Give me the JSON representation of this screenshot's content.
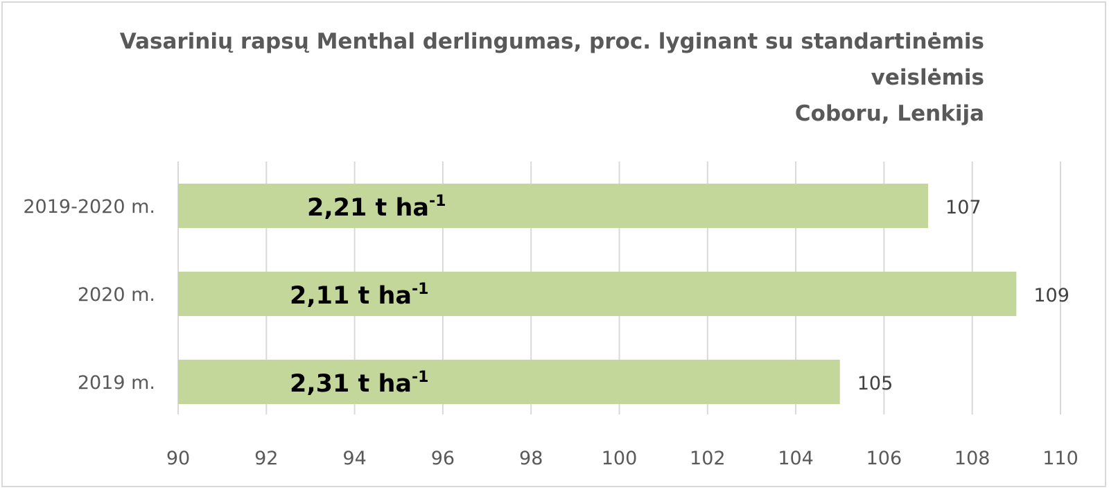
{
  "chart_data": {
    "type": "bar",
    "orientation": "horizontal",
    "title_lines": [
      "Vasarinių rapsų Menthal derlingumas, proc. lyginant su standartinėmis",
      "veislėmis",
      "Coboru, Lenkija"
    ],
    "categories": [
      "2019-2020 m.",
      "2020 m.",
      "2019 m."
    ],
    "values": [
      107,
      109,
      105
    ],
    "data_labels": [
      "107",
      "109",
      "105"
    ],
    "bar_annotations": [
      {
        "main": "2,21 t ha",
        "sup": "-1"
      },
      {
        "main": "2,11 t ha",
        "sup": "-1"
      },
      {
        "main": "2,31 t ha",
        "sup": "-1"
      }
    ],
    "xlim": [
      90,
      110
    ],
    "xticks": [
      90,
      92,
      94,
      96,
      98,
      100,
      102,
      104,
      106,
      108,
      110
    ],
    "grid": true,
    "legend": false,
    "colors": {
      "bar": "#c4d79b",
      "grid": "#d9d9d9",
      "text": "#595959",
      "annotation": "#000000"
    }
  }
}
